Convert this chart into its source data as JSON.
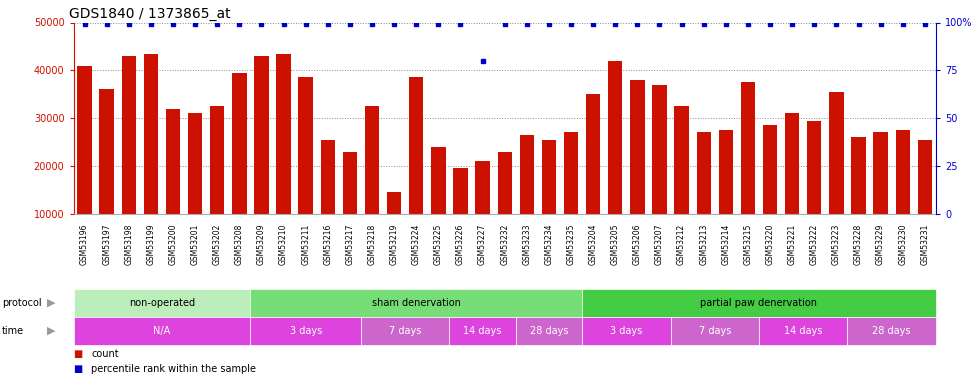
{
  "title": "GDS1840 / 1373865_at",
  "samples": [
    "GSM53196",
    "GSM53197",
    "GSM53198",
    "GSM53199",
    "GSM53200",
    "GSM53201",
    "GSM53202",
    "GSM53208",
    "GSM53209",
    "GSM53210",
    "GSM53211",
    "GSM53216",
    "GSM53217",
    "GSM53218",
    "GSM53219",
    "GSM53224",
    "GSM53225",
    "GSM53226",
    "GSM53227",
    "GSM53232",
    "GSM53233",
    "GSM53234",
    "GSM53235",
    "GSM53204",
    "GSM53205",
    "GSM53206",
    "GSM53207",
    "GSM53212",
    "GSM53213",
    "GSM53214",
    "GSM53215",
    "GSM53220",
    "GSM53221",
    "GSM53222",
    "GSM53223",
    "GSM53228",
    "GSM53229",
    "GSM53230",
    "GSM53231"
  ],
  "counts": [
    41000,
    36000,
    43000,
    43500,
    32000,
    31000,
    32500,
    39500,
    43000,
    43500,
    38500,
    25500,
    23000,
    32500,
    14500,
    38500,
    24000,
    19500,
    21000,
    23000,
    26500,
    25500,
    27000,
    35000,
    42000,
    38000,
    37000,
    32500,
    27000,
    27500,
    37500,
    28500,
    31000,
    29500,
    35500,
    26000,
    27000,
    27500,
    25500
  ],
  "percentiles": [
    99,
    99,
    99,
    99,
    99,
    99,
    99,
    99,
    99,
    99,
    99,
    99,
    99,
    99,
    99,
    99,
    99,
    99,
    80,
    99,
    99,
    99,
    99,
    99,
    99,
    99,
    99,
    99,
    99,
    99,
    99,
    99,
    99,
    99,
    99,
    99,
    99,
    99,
    99
  ],
  "bar_color": "#cc1100",
  "dot_color": "#0000cc",
  "ylim_left": [
    10000,
    50000
  ],
  "ylim_right": [
    0,
    100
  ],
  "yticks_left": [
    10000,
    20000,
    30000,
    40000,
    50000
  ],
  "yticks_right": [
    0,
    25,
    50,
    75,
    100
  ],
  "protocol_groups": [
    {
      "label": "non-operated",
      "start": 0,
      "end": 8,
      "color": "#bbeebb"
    },
    {
      "label": "sham denervation",
      "start": 8,
      "end": 23,
      "color": "#77dd77"
    },
    {
      "label": "partial paw denervation",
      "start": 23,
      "end": 39,
      "color": "#44cc44"
    }
  ],
  "time_groups": [
    {
      "label": "N/A",
      "start": 0,
      "end": 8,
      "color": "#dd44dd"
    },
    {
      "label": "3 days",
      "start": 8,
      "end": 13,
      "color": "#dd44dd"
    },
    {
      "label": "7 days",
      "start": 13,
      "end": 17,
      "color": "#cc66cc"
    },
    {
      "label": "14 days",
      "start": 17,
      "end": 20,
      "color": "#dd44dd"
    },
    {
      "label": "28 days",
      "start": 20,
      "end": 23,
      "color": "#cc66cc"
    },
    {
      "label": "3 days",
      "start": 23,
      "end": 27,
      "color": "#dd44dd"
    },
    {
      "label": "7 days",
      "start": 27,
      "end": 31,
      "color": "#cc66cc"
    },
    {
      "label": "14 days",
      "start": 31,
      "end": 35,
      "color": "#dd44dd"
    },
    {
      "label": "28 days",
      "start": 35,
      "end": 39,
      "color": "#cc66cc"
    }
  ],
  "grid_color": "#888888",
  "bg_color": "#ffffff",
  "left_axis_color": "#cc1100",
  "right_axis_color": "#0000cc",
  "title_fontsize": 10,
  "tick_fontsize": 7,
  "bar_bottom": 10000
}
